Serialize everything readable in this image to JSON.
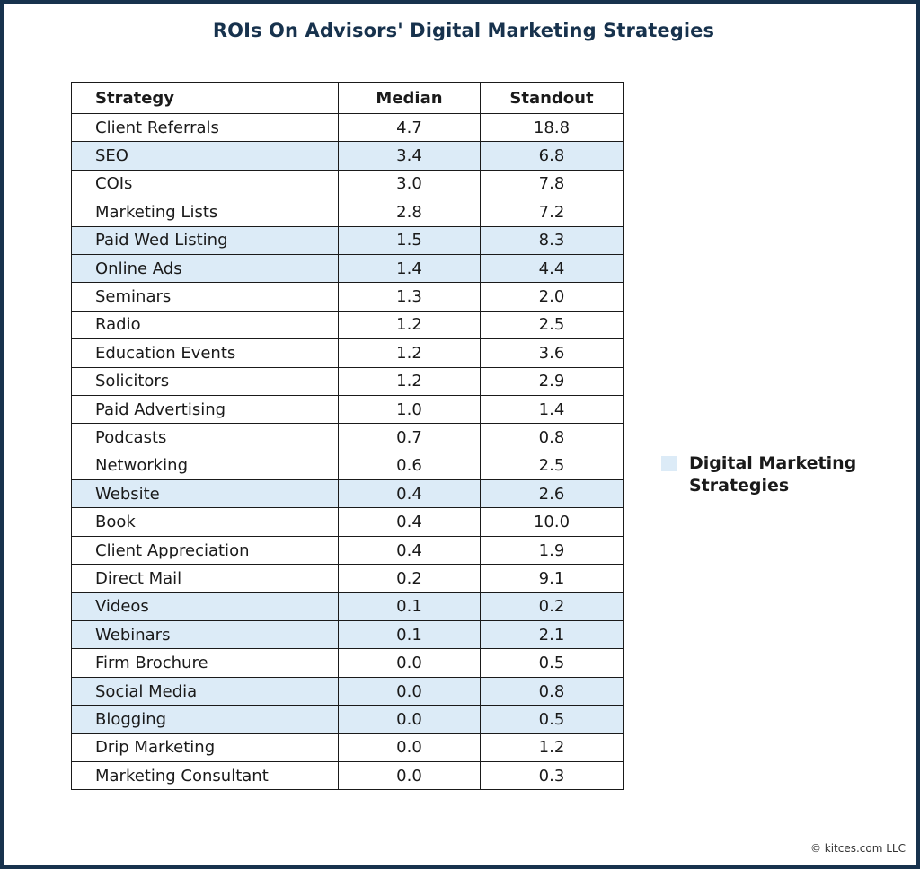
{
  "title": "ROIs On Advisors' Digital Marketing Strategies",
  "copyright": "© kitces.com LLC",
  "colors": {
    "frame": "#17324d",
    "title": "#17324d",
    "digital_highlight": "#dcebf7",
    "text": "#1a1a1a"
  },
  "legend": {
    "label": "Digital Marketing Strategies"
  },
  "chart_data": {
    "type": "table",
    "title": "ROIs On Advisors' Digital Marketing Strategies",
    "columns": [
      "Strategy",
      "Median",
      "Standout"
    ],
    "rows": [
      {
        "strategy": "Client Referrals",
        "median": "4.7",
        "standout": "18.8",
        "digital": false
      },
      {
        "strategy": "SEO",
        "median": "3.4",
        "standout": "6.8",
        "digital": true
      },
      {
        "strategy": "COIs",
        "median": "3.0",
        "standout": "7.8",
        "digital": false
      },
      {
        "strategy": "Marketing Lists",
        "median": "2.8",
        "standout": "7.2",
        "digital": false
      },
      {
        "strategy": "Paid Wed Listing",
        "median": "1.5",
        "standout": "8.3",
        "digital": true
      },
      {
        "strategy": "Online Ads",
        "median": "1.4",
        "standout": "4.4",
        "digital": true
      },
      {
        "strategy": "Seminars",
        "median": "1.3",
        "standout": "2.0",
        "digital": false
      },
      {
        "strategy": "Radio",
        "median": "1.2",
        "standout": "2.5",
        "digital": false
      },
      {
        "strategy": "Education Events",
        "median": "1.2",
        "standout": "3.6",
        "digital": false
      },
      {
        "strategy": "Solicitors",
        "median": "1.2",
        "standout": "2.9",
        "digital": false
      },
      {
        "strategy": "Paid Advertising",
        "median": "1.0",
        "standout": "1.4",
        "digital": false
      },
      {
        "strategy": "Podcasts",
        "median": "0.7",
        "standout": "0.8",
        "digital": false
      },
      {
        "strategy": "Networking",
        "median": "0.6",
        "standout": "2.5",
        "digital": false
      },
      {
        "strategy": "Website",
        "median": "0.4",
        "standout": "2.6",
        "digital": true
      },
      {
        "strategy": "Book",
        "median": "0.4",
        "standout": "10.0",
        "digital": false
      },
      {
        "strategy": "Client Appreciation",
        "median": "0.4",
        "standout": "1.9",
        "digital": false
      },
      {
        "strategy": "Direct Mail",
        "median": "0.2",
        "standout": "9.1",
        "digital": false
      },
      {
        "strategy": "Videos",
        "median": "0.1",
        "standout": "0.2",
        "digital": true
      },
      {
        "strategy": "Webinars",
        "median": "0.1",
        "standout": "2.1",
        "digital": true
      },
      {
        "strategy": "Firm Brochure",
        "median": "0.0",
        "standout": "0.5",
        "digital": false
      },
      {
        "strategy": "Social Media",
        "median": "0.0",
        "standout": "0.8",
        "digital": true
      },
      {
        "strategy": "Blogging",
        "median": "0.0",
        "standout": "0.5",
        "digital": true
      },
      {
        "strategy": "Drip Marketing",
        "median": "0.0",
        "standout": "1.2",
        "digital": false
      },
      {
        "strategy": "Marketing Consultant",
        "median": "0.0",
        "standout": "0.3",
        "digital": false
      }
    ]
  }
}
